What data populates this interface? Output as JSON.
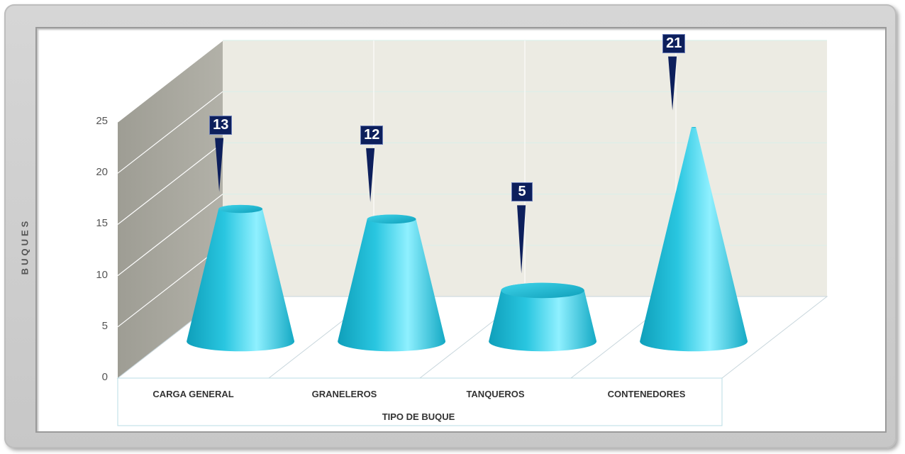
{
  "chart_data": {
    "type": "bar",
    "style": "3d-cone",
    "categories": [
      "CARGA GENERAL",
      "GRANELEROS",
      "TANQUEROS",
      "CONTENEDORES"
    ],
    "values": [
      13,
      12,
      5,
      21
    ],
    "ylabel": "BUQUES",
    "xlabel": "TIPO DE BUQUE",
    "ylim": [
      0,
      25
    ],
    "yticks": [
      "0",
      "5",
      "10",
      "15",
      "20",
      "25"
    ],
    "grid": true,
    "data_labels": [
      "13",
      "12",
      "5",
      "21"
    ],
    "colors": {
      "cone": "#29c6e0",
      "cone_dark": "#0f9fba",
      "cone_light": "#8ff0ff",
      "back_wall": "#ecebe3",
      "side_wall": "#a7a69d",
      "label_bg": "#0d1f5c"
    }
  }
}
